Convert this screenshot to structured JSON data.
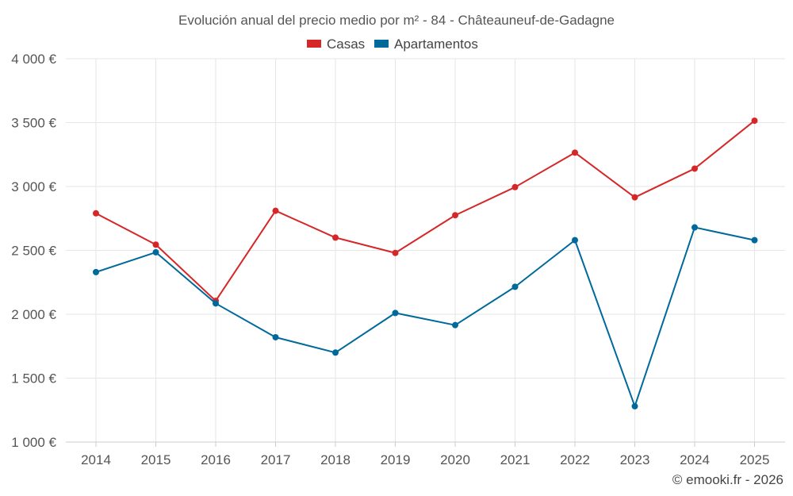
{
  "chart_data": {
    "type": "line",
    "title": "Evolución anual del precio medio por m² - 84 - Châteauneuf-de-Gadagne",
    "categories": [
      "2014",
      "2015",
      "2016",
      "2017",
      "2018",
      "2019",
      "2020",
      "2021",
      "2022",
      "2023",
      "2024",
      "2025"
    ],
    "ylim": [
      1000,
      4000
    ],
    "ytick_values": [
      1000,
      1500,
      2000,
      2500,
      3000,
      3500,
      4000
    ],
    "ytick_labels": [
      "1 000 €",
      "1 500 €",
      "2 000 €",
      "2 500 €",
      "3 000 €",
      "3 500 €",
      "4 000 €"
    ],
    "grid": true,
    "legend_position": "top-center",
    "series": [
      {
        "name": "Casas",
        "color": "#d62728",
        "values": [
          2790,
          2545,
          2105,
          2810,
          2600,
          2480,
          2775,
          2995,
          3265,
          2915,
          3140,
          3515
        ]
      },
      {
        "name": "Apartamentos",
        "color": "#00699b",
        "values": [
          2330,
          2485,
          2085,
          1820,
          1700,
          2010,
          1915,
          2215,
          2580,
          1280,
          2680,
          2580
        ]
      }
    ],
    "credit": "© emooki.fr - 2026"
  }
}
